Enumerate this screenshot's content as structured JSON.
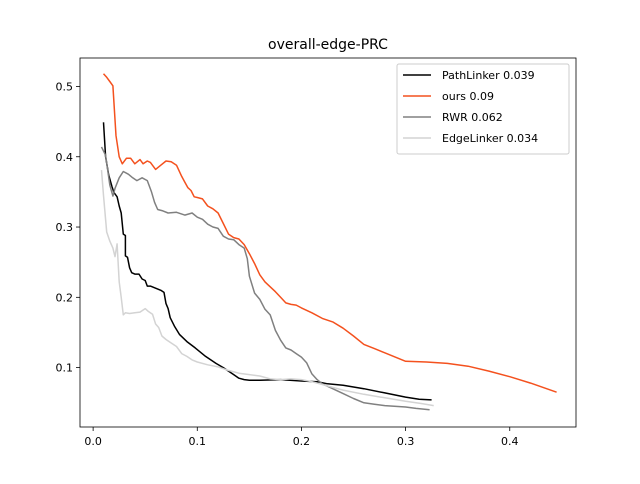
{
  "chart_data": {
    "type": "line",
    "title": "overall-edge-PRC",
    "xlabel": "",
    "ylabel": "",
    "xlim": [
      -0.0126,
      0.4636
    ],
    "ylim": [
      0.0155,
      0.5405
    ],
    "xticks": [
      0,
      0.1,
      0.2,
      0.3,
      0.4
    ],
    "xtick_labels": [
      "0.0",
      "0.1",
      "0.2",
      "0.3",
      "0.4"
    ],
    "yticks": [
      0.1,
      0.2,
      0.3,
      0.4,
      0.5
    ],
    "ytick_labels": [
      "0.1",
      "0.2",
      "0.3",
      "0.4",
      "0.5"
    ],
    "grid": false,
    "legend_position": "top-right",
    "series": [
      {
        "name": "PathLinker 0.039",
        "color": "#000000",
        "x": [
          0.01,
          0.012,
          0.015,
          0.018,
          0.02,
          0.023,
          0.025,
          0.027,
          0.029,
          0.031,
          0.031,
          0.033,
          0.035,
          0.037,
          0.04,
          0.044,
          0.047,
          0.05,
          0.052,
          0.055,
          0.06,
          0.065,
          0.068,
          0.07,
          0.072,
          0.074,
          0.078,
          0.083,
          0.09,
          0.098,
          0.108,
          0.118,
          0.125,
          0.13,
          0.135,
          0.14,
          0.145,
          0.15,
          0.16,
          0.18,
          0.2,
          0.215,
          0.225,
          0.24,
          0.26,
          0.28,
          0.3,
          0.313,
          0.325
        ],
        "y": [
          0.449,
          0.4,
          0.374,
          0.358,
          0.349,
          0.343,
          0.33,
          0.32,
          0.29,
          0.288,
          0.259,
          0.257,
          0.242,
          0.235,
          0.233,
          0.233,
          0.226,
          0.224,
          0.216,
          0.216,
          0.213,
          0.21,
          0.207,
          0.191,
          0.184,
          0.171,
          0.159,
          0.147,
          0.137,
          0.128,
          0.116,
          0.106,
          0.1,
          0.095,
          0.09,
          0.085,
          0.083,
          0.082,
          0.082,
          0.083,
          0.081,
          0.08,
          0.077,
          0.075,
          0.07,
          0.064,
          0.058,
          0.055,
          0.054
        ]
      },
      {
        "name": "ours 0.09",
        "color": "#f4511e",
        "x": [
          0.01,
          0.013,
          0.016,
          0.019,
          0.022,
          0.025,
          0.028,
          0.032,
          0.036,
          0.04,
          0.045,
          0.048,
          0.052,
          0.055,
          0.06,
          0.065,
          0.07,
          0.075,
          0.08,
          0.085,
          0.088,
          0.091,
          0.094,
          0.097,
          0.1,
          0.105,
          0.11,
          0.115,
          0.12,
          0.125,
          0.13,
          0.135,
          0.14,
          0.145,
          0.15,
          0.155,
          0.16,
          0.165,
          0.17,
          0.175,
          0.18,
          0.185,
          0.19,
          0.195,
          0.2,
          0.21,
          0.22,
          0.23,
          0.24,
          0.25,
          0.26,
          0.27,
          0.28,
          0.29,
          0.3,
          0.32,
          0.34,
          0.36,
          0.38,
          0.4,
          0.42,
          0.445
        ],
        "y": [
          0.518,
          0.513,
          0.507,
          0.501,
          0.43,
          0.4,
          0.39,
          0.398,
          0.398,
          0.39,
          0.396,
          0.39,
          0.394,
          0.392,
          0.382,
          0.388,
          0.394,
          0.393,
          0.388,
          0.372,
          0.364,
          0.356,
          0.352,
          0.343,
          0.342,
          0.34,
          0.33,
          0.326,
          0.32,
          0.305,
          0.29,
          0.285,
          0.283,
          0.275,
          0.262,
          0.248,
          0.232,
          0.222,
          0.215,
          0.208,
          0.2,
          0.192,
          0.19,
          0.189,
          0.185,
          0.178,
          0.17,
          0.165,
          0.156,
          0.145,
          0.133,
          0.127,
          0.121,
          0.115,
          0.109,
          0.108,
          0.106,
          0.102,
          0.095,
          0.087,
          0.078,
          0.065
        ]
      },
      {
        "name": "RWR 0.062",
        "color": "#808080",
        "x": [
          0.008,
          0.012,
          0.016,
          0.019,
          0.021,
          0.025,
          0.029,
          0.034,
          0.038,
          0.042,
          0.047,
          0.052,
          0.056,
          0.059,
          0.062,
          0.067,
          0.072,
          0.08,
          0.088,
          0.095,
          0.1,
          0.105,
          0.11,
          0.115,
          0.12,
          0.125,
          0.13,
          0.135,
          0.14,
          0.145,
          0.148,
          0.15,
          0.155,
          0.16,
          0.165,
          0.17,
          0.175,
          0.18,
          0.185,
          0.19,
          0.195,
          0.2,
          0.205,
          0.21,
          0.215,
          0.22,
          0.23,
          0.24,
          0.25,
          0.26,
          0.27,
          0.28,
          0.3,
          0.31,
          0.323
        ],
        "y": [
          0.414,
          0.402,
          0.36,
          0.344,
          0.355,
          0.37,
          0.379,
          0.375,
          0.37,
          0.366,
          0.37,
          0.366,
          0.35,
          0.335,
          0.325,
          0.323,
          0.32,
          0.321,
          0.317,
          0.32,
          0.314,
          0.311,
          0.304,
          0.3,
          0.298,
          0.287,
          0.283,
          0.282,
          0.275,
          0.27,
          0.255,
          0.23,
          0.206,
          0.197,
          0.183,
          0.175,
          0.153,
          0.139,
          0.128,
          0.125,
          0.12,
          0.115,
          0.107,
          0.091,
          0.083,
          0.077,
          0.07,
          0.063,
          0.056,
          0.05,
          0.048,
          0.046,
          0.044,
          0.042,
          0.04
        ]
      },
      {
        "name": "EdgeLinker 0.034",
        "color": "#d3d3d3",
        "x": [
          0.008,
          0.01,
          0.013,
          0.016,
          0.019,
          0.021,
          0.023,
          0.025,
          0.027,
          0.029,
          0.031,
          0.035,
          0.04,
          0.045,
          0.05,
          0.053,
          0.057,
          0.06,
          0.063,
          0.066,
          0.07,
          0.075,
          0.08,
          0.085,
          0.09,
          0.095,
          0.1,
          0.11,
          0.12,
          0.13,
          0.14,
          0.15,
          0.16,
          0.17,
          0.18,
          0.19,
          0.2,
          0.21,
          0.22,
          0.23,
          0.24,
          0.26,
          0.28,
          0.3,
          0.315,
          0.327
        ],
        "y": [
          0.381,
          0.345,
          0.293,
          0.28,
          0.27,
          0.258,
          0.276,
          0.222,
          0.2,
          0.175,
          0.178,
          0.177,
          0.178,
          0.179,
          0.184,
          0.18,
          0.176,
          0.162,
          0.157,
          0.145,
          0.14,
          0.135,
          0.13,
          0.12,
          0.116,
          0.111,
          0.108,
          0.104,
          0.101,
          0.096,
          0.092,
          0.09,
          0.088,
          0.084,
          0.083,
          0.084,
          0.083,
          0.08,
          0.076,
          0.072,
          0.068,
          0.062,
          0.057,
          0.052,
          0.049,
          0.046
        ]
      }
    ]
  }
}
